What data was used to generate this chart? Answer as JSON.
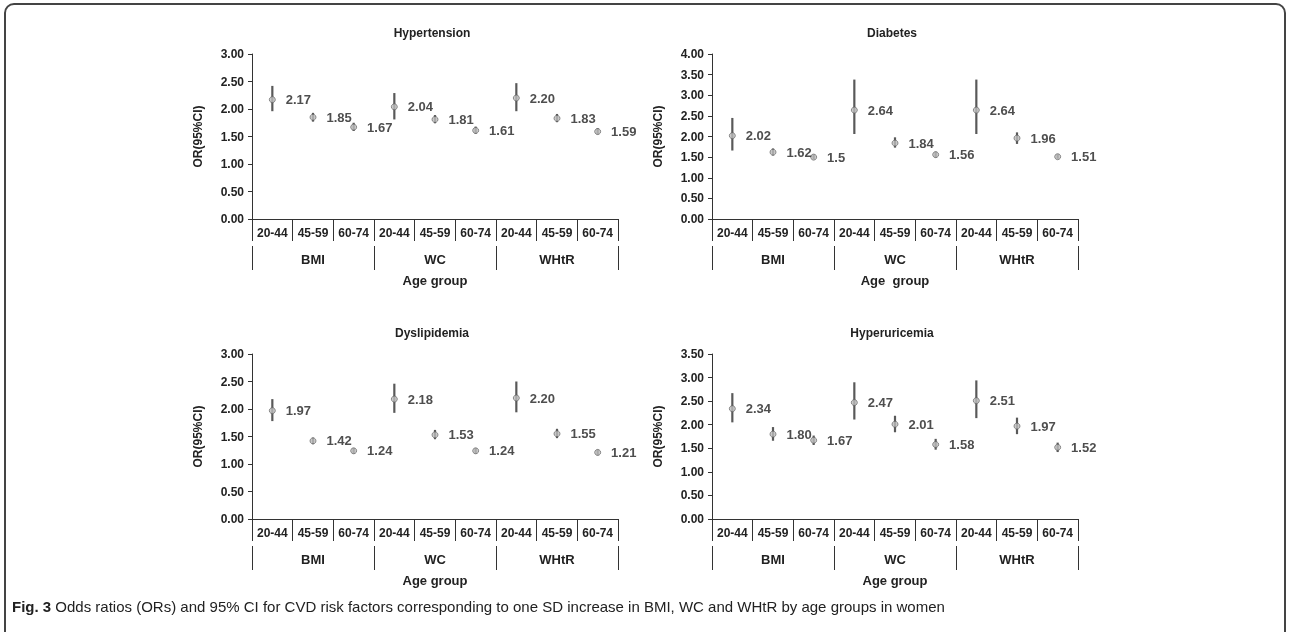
{
  "chart_data": [
    {
      "type": "scatter",
      "title": "Hypertension",
      "xlabel": "Age group",
      "ylabel": "OR(95%CI)",
      "categories": [
        "20-44",
        "45-59",
        "60-74",
        "20-44",
        "45-59",
        "60-74",
        "20-44",
        "45-59",
        "60-74"
      ],
      "color": "#595959",
      "marker": "circle",
      "grid": false,
      "values": [
        2.17,
        1.85,
        1.67,
        2.04,
        1.81,
        1.61,
        2.2,
        1.83,
        1.59
      ],
      "errors": [
        [
          1.96,
          2.42
        ],
        [
          1.77,
          1.93
        ],
        [
          1.6,
          1.75
        ],
        [
          1.81,
          2.29
        ],
        [
          1.74,
          1.89
        ],
        [
          1.55,
          1.68
        ],
        [
          1.96,
          2.47
        ],
        [
          1.76,
          1.91
        ],
        [
          1.54,
          1.65
        ]
      ],
      "value_labels": [
        "2.17",
        "1.85",
        "1.67",
        "2.04",
        "1.81",
        "1.61",
        "2.20",
        "1.83",
        "1.59"
      ],
      "ylim": [
        0,
        3
      ],
      "yticks": [
        {
          "value": 0,
          "label": "0.00"
        },
        {
          "value": 0.5,
          "label": "0.50"
        },
        {
          "value": 1,
          "label": "1.00"
        },
        {
          "value": 1.5,
          "label": "1.50"
        },
        {
          "value": 2,
          "label": "2.00"
        },
        {
          "value": 2.5,
          "label": "2.50"
        },
        {
          "value": 3,
          "label": "3.00"
        }
      ],
      "annotations": [
        "BMI",
        "WC",
        "WHtR"
      ]
    },
    {
      "type": "scatter",
      "title": "Diabetes",
      "xlabel": "Age  group",
      "ylabel": "OR(95%CI)",
      "categories": [
        "20-44",
        "45-59",
        "60-74",
        "20-44",
        "45-59",
        "60-74",
        "20-44",
        "45-59",
        "60-74"
      ],
      "color": "#595959",
      "marker": "circle",
      "grid": false,
      "values": [
        2.02,
        1.62,
        1.5,
        2.64,
        1.84,
        1.56,
        2.64,
        1.96,
        1.51
      ],
      "errors": [
        [
          1.66,
          2.45
        ],
        [
          1.54,
          1.71
        ],
        [
          1.45,
          1.56
        ],
        [
          2.06,
          3.38
        ],
        [
          1.73,
          1.98
        ],
        [
          1.49,
          1.63
        ],
        [
          2.06,
          3.38
        ],
        [
          1.82,
          2.1
        ],
        [
          1.46,
          1.57
        ]
      ],
      "value_labels": [
        "2.02",
        "1.62",
        "1.5",
        "2.64",
        "1.84",
        "1.56",
        "2.64",
        "1.96",
        "1.51"
      ],
      "ylim": [
        0,
        4
      ],
      "yticks": [
        {
          "value": 0,
          "label": "0.00"
        },
        {
          "value": 0.5,
          "label": "0.50"
        },
        {
          "value": 1,
          "label": "1.00"
        },
        {
          "value": 1.5,
          "label": "1.50"
        },
        {
          "value": 2,
          "label": "2.00"
        },
        {
          "value": 2.5,
          "label": "2.50"
        },
        {
          "value": 3,
          "label": "3.00"
        },
        {
          "value": 3.5,
          "label": "3.50"
        },
        {
          "value": 4,
          "label": "4.00"
        }
      ],
      "annotations": [
        "BMI",
        "WC",
        "WHtR"
      ]
    },
    {
      "type": "scatter",
      "title": "Dyslipidemia",
      "xlabel": "Age group",
      "ylabel": "OR(95%CI)",
      "categories": [
        "20-44",
        "45-59",
        "60-74",
        "20-44",
        "45-59",
        "60-74",
        "20-44",
        "45-59",
        "60-74"
      ],
      "color": "#595959",
      "marker": "circle",
      "grid": false,
      "values": [
        1.97,
        1.42,
        1.24,
        2.18,
        1.53,
        1.24,
        2.2,
        1.55,
        1.21
      ],
      "errors": [
        [
          1.78,
          2.18
        ],
        [
          1.36,
          1.48
        ],
        [
          1.19,
          1.29
        ],
        [
          1.93,
          2.46
        ],
        [
          1.45,
          1.62
        ],
        [
          1.19,
          1.29
        ],
        [
          1.94,
          2.5
        ],
        [
          1.47,
          1.64
        ],
        [
          1.16,
          1.26
        ]
      ],
      "value_labels": [
        "1.97",
        "1.42",
        "1.24",
        "2.18",
        "1.53",
        "1.24",
        "2.20",
        "1.55",
        "1.21"
      ],
      "ylim": [
        0,
        3
      ],
      "yticks": [
        {
          "value": 0,
          "label": "0.00"
        },
        {
          "value": 0.5,
          "label": "0.50"
        },
        {
          "value": 1,
          "label": "1.00"
        },
        {
          "value": 1.5,
          "label": "1.50"
        },
        {
          "value": 2,
          "label": "2.00"
        },
        {
          "value": 2.5,
          "label": "2.50"
        },
        {
          "value": 3,
          "label": "3.00"
        }
      ],
      "annotations": [
        "BMI",
        "WC",
        "WHtR"
      ]
    },
    {
      "type": "scatter",
      "title": "Hyperuricemia",
      "xlabel": "Age group",
      "ylabel": "OR(95%CI)",
      "categories": [
        "20-44",
        "45-59",
        "60-74",
        "20-44",
        "45-59",
        "60-74",
        "20-44",
        "45-59",
        "60-74"
      ],
      "color": "#595959",
      "marker": "circle",
      "grid": false,
      "values": [
        2.34,
        1.8,
        1.67,
        2.47,
        2.01,
        1.58,
        2.51,
        1.97,
        1.52
      ],
      "errors": [
        [
          2.05,
          2.67
        ],
        [
          1.66,
          1.95
        ],
        [
          1.57,
          1.77
        ],
        [
          2.11,
          2.9
        ],
        [
          1.84,
          2.19
        ],
        [
          1.47,
          1.7
        ],
        [
          2.14,
          2.94
        ],
        [
          1.8,
          2.15
        ],
        [
          1.42,
          1.62
        ]
      ],
      "value_labels": [
        "2.34",
        "1.80",
        "1.67",
        "2.47",
        "2.01",
        "1.58",
        "2.51",
        "1.97",
        "1.52"
      ],
      "ylim": [
        0,
        3.5
      ],
      "yticks": [
        {
          "value": 0,
          "label": "0.00"
        },
        {
          "value": 0.5,
          "label": "0.50"
        },
        {
          "value": 1,
          "label": "1.00"
        },
        {
          "value": 1.5,
          "label": "1.50"
        },
        {
          "value": 2,
          "label": "2.00"
        },
        {
          "value": 2.5,
          "label": "2.50"
        },
        {
          "value": 3,
          "label": "3.00"
        },
        {
          "value": 3.5,
          "label": "3.50"
        }
      ],
      "annotations": [
        "BMI",
        "WC",
        "WHtR",
        "Fig. 3 Odds ratios (ORs) and 95% CI for CVD risk factors corresponding to one SD increase in BMI, WC and WHtR by age groups in women"
      ]
    }
  ]
}
